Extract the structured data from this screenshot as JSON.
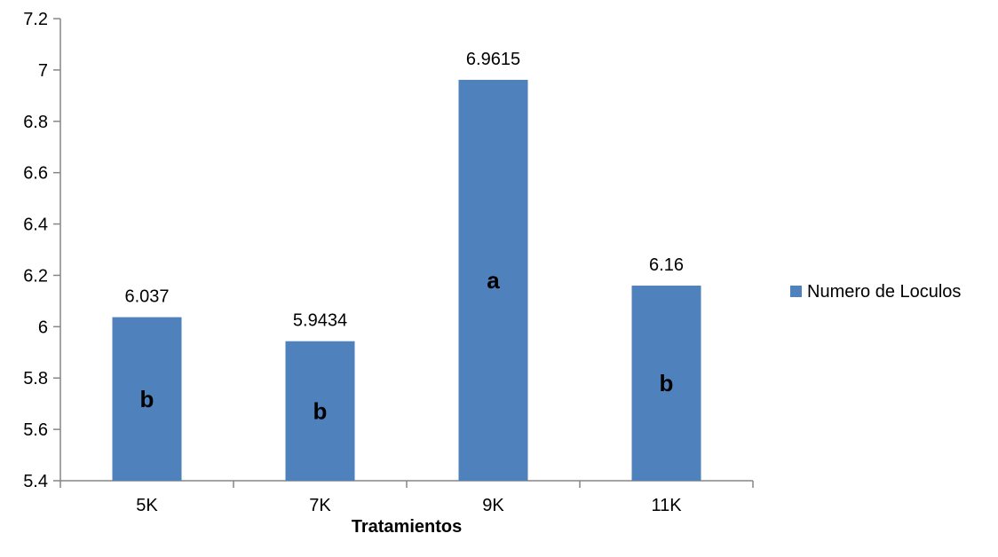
{
  "chart_data": {
    "type": "bar",
    "title": "",
    "xlabel": "Tratamientos",
    "ylabel": "",
    "categories": [
      "5K",
      "7K",
      "9K",
      "11K"
    ],
    "series": [
      {
        "name": "Numero de Loculos",
        "values": [
          6.037,
          5.9434,
          6.9615,
          6.16
        ],
        "value_labels": [
          "6.037",
          "5.9434",
          "6.9615",
          "6.16"
        ],
        "group_letters": [
          "b",
          "b",
          "a",
          "b"
        ]
      }
    ],
    "ylim": [
      5.4,
      7.2
    ],
    "yticks": [
      5.4,
      5.6,
      5.8,
      6,
      6.2,
      6.4,
      6.6,
      6.8,
      7,
      7.2
    ],
    "ytick_labels": [
      "5.4",
      "5.6",
      "5.8",
      "6",
      "6.2",
      "6.4",
      "6.6",
      "6.8",
      "7",
      "7.2"
    ],
    "grid": false,
    "legend_position": "right",
    "colors": {
      "bar": "#4f81bd",
      "axis": "#868686"
    }
  }
}
